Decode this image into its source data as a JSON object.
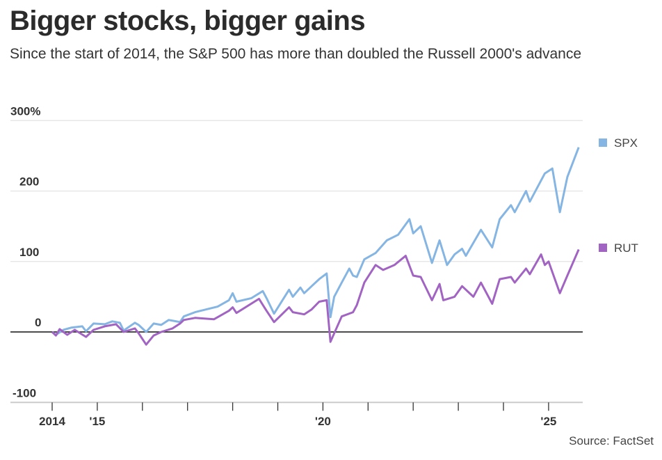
{
  "title": "Bigger stocks, bigger gains",
  "subtitle": "Since the start of 2014, the S&P 500 has more than doubled the Russell 2000's advance",
  "source": "Source: FactSet",
  "chart_data": {
    "type": "line",
    "title": "Bigger stocks, bigger gains",
    "xlabel": "",
    "ylabel": "",
    "ylim": [
      -100,
      300
    ],
    "xlim": [
      "2013-11",
      "2026-01"
    ],
    "grid": true,
    "legend": "right",
    "y_ticks": [
      {
        "value": 300,
        "label": "300%"
      },
      {
        "value": 200,
        "label": "200"
      },
      {
        "value": 100,
        "label": "100"
      },
      {
        "value": 0,
        "label": "0"
      },
      {
        "value": -100,
        "label": "-100"
      }
    ],
    "x_ticks": [
      "2014",
      "2015",
      "2016",
      "2017",
      "2018",
      "2019",
      "2020",
      "2021",
      "2022",
      "2023",
      "2024",
      "2025"
    ],
    "x_tick_labels": [
      {
        "year": "2014",
        "label": "2014"
      },
      {
        "year": "2015",
        "label": "'15"
      },
      {
        "year": "2020",
        "label": "'20"
      },
      {
        "year": "2025",
        "label": "'25"
      }
    ],
    "series": [
      {
        "name": "SPX",
        "color": "#85b5e2",
        "points": [
          [
            "2014-01",
            0
          ],
          [
            "2014-02",
            -4
          ],
          [
            "2014-04",
            3
          ],
          [
            "2014-06",
            6
          ],
          [
            "2014-09",
            8
          ],
          [
            "2014-10",
            1
          ],
          [
            "2014-12",
            12
          ],
          [
            "2015-03",
            11
          ],
          [
            "2015-05",
            15
          ],
          [
            "2015-07",
            13
          ],
          [
            "2015-08",
            2
          ],
          [
            "2015-11",
            13
          ],
          [
            "2015-12",
            10
          ],
          [
            "2016-02",
            0
          ],
          [
            "2016-04",
            12
          ],
          [
            "2016-06",
            10
          ],
          [
            "2016-08",
            17
          ],
          [
            "2016-11",
            14
          ],
          [
            "2016-12",
            22
          ],
          [
            "2017-03",
            28
          ],
          [
            "2017-06",
            32
          ],
          [
            "2017-09",
            36
          ],
          [
            "2017-12",
            45
          ],
          [
            "2018-01",
            55
          ],
          [
            "2018-02",
            43
          ],
          [
            "2018-06",
            48
          ],
          [
            "2018-09",
            58
          ],
          [
            "2018-10",
            48
          ],
          [
            "2018-12",
            26
          ],
          [
            "2019-04",
            60
          ],
          [
            "2019-05",
            50
          ],
          [
            "2019-07",
            63
          ],
          [
            "2019-08",
            55
          ],
          [
            "2019-10",
            65
          ],
          [
            "2019-12",
            75
          ],
          [
            "2020-02",
            83
          ],
          [
            "2020-03",
            21
          ],
          [
            "2020-04",
            50
          ],
          [
            "2020-06",
            70
          ],
          [
            "2020-08",
            90
          ],
          [
            "2020-09",
            80
          ],
          [
            "2020-10",
            78
          ],
          [
            "2020-12",
            103
          ],
          [
            "2021-03",
            112
          ],
          [
            "2021-06",
            130
          ],
          [
            "2021-09",
            138
          ],
          [
            "2021-12",
            160
          ],
          [
            "2022-01",
            140
          ],
          [
            "2022-03",
            150
          ],
          [
            "2022-06",
            98
          ],
          [
            "2022-08",
            130
          ],
          [
            "2022-10",
            95
          ],
          [
            "2022-12",
            110
          ],
          [
            "2023-02",
            118
          ],
          [
            "2023-03",
            108
          ],
          [
            "2023-07",
            145
          ],
          [
            "2023-10",
            120
          ],
          [
            "2023-12",
            160
          ],
          [
            "2024-03",
            180
          ],
          [
            "2024-04",
            170
          ],
          [
            "2024-07",
            200
          ],
          [
            "2024-08",
            185
          ],
          [
            "2024-12",
            225
          ],
          [
            "2025-02",
            232
          ],
          [
            "2025-04",
            170
          ],
          [
            "2025-06",
            220
          ],
          [
            "2025-09",
            262
          ]
        ]
      },
      {
        "name": "RUT",
        "color": "#a264c2",
        "points": [
          [
            "2014-01",
            0
          ],
          [
            "2014-02",
            -5
          ],
          [
            "2014-03",
            4
          ],
          [
            "2014-05",
            -4
          ],
          [
            "2014-07",
            3
          ],
          [
            "2014-10",
            -7
          ],
          [
            "2014-12",
            3
          ],
          [
            "2015-03",
            8
          ],
          [
            "2015-06",
            11
          ],
          [
            "2015-08",
            0
          ],
          [
            "2015-11",
            5
          ],
          [
            "2015-12",
            -2
          ],
          [
            "2016-02",
            -18
          ],
          [
            "2016-04",
            -5
          ],
          [
            "2016-06",
            0
          ],
          [
            "2016-09",
            5
          ],
          [
            "2016-11",
            12
          ],
          [
            "2016-12",
            17
          ],
          [
            "2017-03",
            20
          ],
          [
            "2017-08",
            18
          ],
          [
            "2017-12",
            30
          ],
          [
            "2018-01",
            35
          ],
          [
            "2018-02",
            27
          ],
          [
            "2018-08",
            47
          ],
          [
            "2018-10",
            30
          ],
          [
            "2018-12",
            14
          ],
          [
            "2019-04",
            35
          ],
          [
            "2019-05",
            28
          ],
          [
            "2019-08",
            25
          ],
          [
            "2019-10",
            32
          ],
          [
            "2019-12",
            43
          ],
          [
            "2020-02",
            45
          ],
          [
            "2020-03",
            -14
          ],
          [
            "2020-06",
            22
          ],
          [
            "2020-09",
            28
          ],
          [
            "2020-10",
            38
          ],
          [
            "2020-12",
            70
          ],
          [
            "2021-03",
            95
          ],
          [
            "2021-05",
            88
          ],
          [
            "2021-08",
            95
          ],
          [
            "2021-11",
            108
          ],
          [
            "2022-01",
            80
          ],
          [
            "2022-03",
            78
          ],
          [
            "2022-06",
            45
          ],
          [
            "2022-08",
            68
          ],
          [
            "2022-09",
            45
          ],
          [
            "2022-12",
            50
          ],
          [
            "2023-02",
            65
          ],
          [
            "2023-05",
            50
          ],
          [
            "2023-07",
            70
          ],
          [
            "2023-10",
            40
          ],
          [
            "2023-12",
            75
          ],
          [
            "2024-03",
            78
          ],
          [
            "2024-04",
            70
          ],
          [
            "2024-07",
            90
          ],
          [
            "2024-08",
            82
          ],
          [
            "2024-11",
            110
          ],
          [
            "2024-12",
            95
          ],
          [
            "2025-01",
            100
          ],
          [
            "2025-04",
            55
          ],
          [
            "2025-06",
            80
          ],
          [
            "2025-09",
            117
          ]
        ]
      }
    ]
  }
}
